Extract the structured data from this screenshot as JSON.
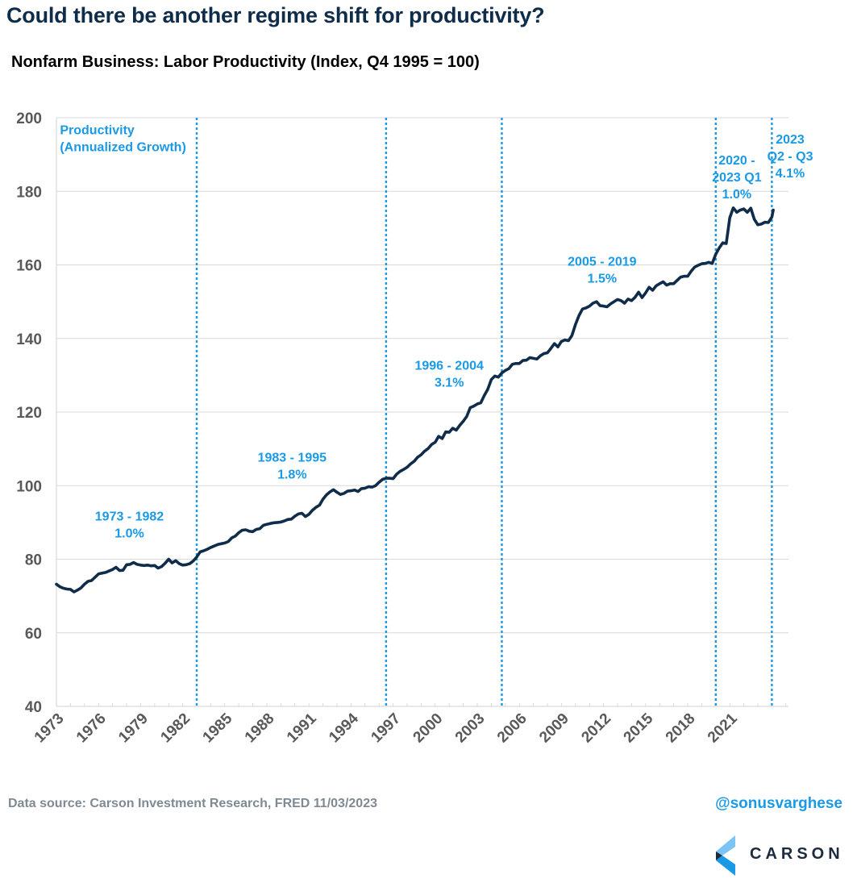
{
  "header": {
    "title": "Could there be another regime shift for productivity?",
    "subtitle": "Nonfarm Business: Labor Productivity (Index, Q4 1995 = 100)"
  },
  "footer": {
    "source": "Data source: Carson Investment Research, FRED   11/03/2023",
    "handle": "@sonusvarghese",
    "logo_text": "CARSON"
  },
  "colors": {
    "line": "#0f2d4a",
    "accent": "#1a9ae6",
    "grid": "#d9d9d9",
    "axis_text": "#595959"
  },
  "chart_data": {
    "type": "line",
    "title": "Nonfarm Business: Labor Productivity (Index, Q4 1995 = 100)",
    "xlabel": "",
    "ylabel": "",
    "ylim": [
      40,
      200
    ],
    "xlim": [
      1973,
      2023.75
    ],
    "yticks": [
      40,
      60,
      80,
      100,
      120,
      140,
      160,
      180,
      200
    ],
    "xtick_labels": [
      "1973",
      "1976",
      "1979",
      "1982",
      "1985",
      "1988",
      "1991",
      "1994",
      "1997",
      "2000",
      "2003",
      "2006",
      "2009",
      "2012",
      "2015",
      "2018",
      "2021"
    ],
    "grid": true,
    "legend": "none",
    "series": [
      {
        "name": "Labor Productivity Index",
        "points": [
          [
            1973.0,
            73.2
          ],
          [
            1973.25,
            72.5
          ],
          [
            1973.5,
            72.1
          ],
          [
            1973.75,
            71.9
          ],
          [
            1974.0,
            71.8
          ],
          [
            1974.25,
            71.1
          ],
          [
            1974.5,
            71.6
          ],
          [
            1974.75,
            72.2
          ],
          [
            1975.0,
            73.2
          ],
          [
            1975.25,
            74.0
          ],
          [
            1975.5,
            74.2
          ],
          [
            1975.75,
            75.1
          ],
          [
            1976.0,
            76.0
          ],
          [
            1976.25,
            76.2
          ],
          [
            1976.5,
            76.4
          ],
          [
            1976.75,
            76.8
          ],
          [
            1977.0,
            77.2
          ],
          [
            1977.25,
            77.8
          ],
          [
            1977.5,
            76.9
          ],
          [
            1977.75,
            77.0
          ],
          [
            1978.0,
            78.5
          ],
          [
            1978.25,
            78.6
          ],
          [
            1978.5,
            79.1
          ],
          [
            1978.75,
            78.6
          ],
          [
            1979.0,
            78.4
          ],
          [
            1979.25,
            78.3
          ],
          [
            1979.5,
            78.4
          ],
          [
            1979.75,
            78.2
          ],
          [
            1980.0,
            78.3
          ],
          [
            1980.25,
            77.6
          ],
          [
            1980.5,
            78.0
          ],
          [
            1980.75,
            78.9
          ],
          [
            1981.0,
            80.0
          ],
          [
            1981.25,
            79.0
          ],
          [
            1981.5,
            79.6
          ],
          [
            1981.75,
            78.8
          ],
          [
            1982.0,
            78.4
          ],
          [
            1982.25,
            78.5
          ],
          [
            1982.5,
            78.8
          ],
          [
            1982.75,
            79.5
          ],
          [
            1983.0,
            80.6
          ],
          [
            1983.25,
            82.0
          ],
          [
            1983.5,
            82.3
          ],
          [
            1983.75,
            82.7
          ],
          [
            1984.0,
            83.2
          ],
          [
            1984.25,
            83.6
          ],
          [
            1984.5,
            84.0
          ],
          [
            1984.75,
            84.2
          ],
          [
            1985.0,
            84.4
          ],
          [
            1985.25,
            84.8
          ],
          [
            1985.5,
            85.8
          ],
          [
            1985.75,
            86.3
          ],
          [
            1986.0,
            87.2
          ],
          [
            1986.25,
            87.9
          ],
          [
            1986.5,
            88.0
          ],
          [
            1986.75,
            87.6
          ],
          [
            1987.0,
            87.5
          ],
          [
            1987.25,
            88.1
          ],
          [
            1987.5,
            88.3
          ],
          [
            1987.75,
            89.2
          ],
          [
            1988.0,
            89.5
          ],
          [
            1988.25,
            89.7
          ],
          [
            1988.5,
            89.9
          ],
          [
            1988.75,
            90.0
          ],
          [
            1989.0,
            90.1
          ],
          [
            1989.25,
            90.4
          ],
          [
            1989.5,
            90.8
          ],
          [
            1989.75,
            90.9
          ],
          [
            1990.0,
            91.7
          ],
          [
            1990.25,
            92.3
          ],
          [
            1990.5,
            92.5
          ],
          [
            1990.75,
            91.6
          ],
          [
            1991.0,
            92.2
          ],
          [
            1991.25,
            93.3
          ],
          [
            1991.5,
            94.1
          ],
          [
            1991.75,
            94.7
          ],
          [
            1992.0,
            96.3
          ],
          [
            1992.25,
            97.5
          ],
          [
            1992.5,
            98.3
          ],
          [
            1992.75,
            98.9
          ],
          [
            1993.0,
            98.2
          ],
          [
            1993.25,
            97.6
          ],
          [
            1993.5,
            97.9
          ],
          [
            1993.75,
            98.5
          ],
          [
            1994.0,
            98.6
          ],
          [
            1994.25,
            98.8
          ],
          [
            1994.5,
            98.4
          ],
          [
            1994.75,
            99.2
          ],
          [
            1995.0,
            99.3
          ],
          [
            1995.25,
            99.7
          ],
          [
            1995.5,
            99.6
          ],
          [
            1995.75,
            100.0
          ],
          [
            1996.0,
            100.9
          ],
          [
            1996.25,
            101.7
          ],
          [
            1996.5,
            102.0
          ],
          [
            1996.75,
            102.0
          ],
          [
            1997.0,
            101.9
          ],
          [
            1997.25,
            103.1
          ],
          [
            1997.5,
            103.9
          ],
          [
            1997.75,
            104.4
          ],
          [
            1998.0,
            105.0
          ],
          [
            1998.25,
            105.9
          ],
          [
            1998.5,
            106.6
          ],
          [
            1998.75,
            107.7
          ],
          [
            1999.0,
            108.4
          ],
          [
            1999.25,
            109.4
          ],
          [
            1999.5,
            110.1
          ],
          [
            1999.75,
            111.2
          ],
          [
            2000.0,
            111.8
          ],
          [
            2000.25,
            113.4
          ],
          [
            2000.5,
            112.8
          ],
          [
            2000.75,
            114.6
          ],
          [
            2001.0,
            114.5
          ],
          [
            2001.25,
            115.6
          ],
          [
            2001.5,
            115.1
          ],
          [
            2001.75,
            116.4
          ],
          [
            2002.0,
            117.5
          ],
          [
            2002.25,
            118.8
          ],
          [
            2002.5,
            121.2
          ],
          [
            2002.75,
            121.6
          ],
          [
            2003.0,
            122.2
          ],
          [
            2003.25,
            122.5
          ],
          [
            2003.5,
            124.5
          ],
          [
            2003.75,
            126.2
          ],
          [
            2004.0,
            128.8
          ],
          [
            2004.25,
            129.8
          ],
          [
            2004.5,
            129.5
          ],
          [
            2004.75,
            130.6
          ],
          [
            2005.0,
            131.3
          ],
          [
            2005.25,
            131.8
          ],
          [
            2005.5,
            133.0
          ],
          [
            2005.75,
            133.2
          ],
          [
            2006.0,
            133.2
          ],
          [
            2006.25,
            134.0
          ],
          [
            2006.5,
            134.1
          ],
          [
            2006.75,
            134.8
          ],
          [
            2007.0,
            134.6
          ],
          [
            2007.25,
            134.4
          ],
          [
            2007.5,
            135.3
          ],
          [
            2007.75,
            135.9
          ],
          [
            2008.0,
            136.1
          ],
          [
            2008.25,
            137.3
          ],
          [
            2008.5,
            138.6
          ],
          [
            2008.75,
            137.7
          ],
          [
            2009.0,
            139.2
          ],
          [
            2009.25,
            139.6
          ],
          [
            2009.5,
            139.4
          ],
          [
            2009.75,
            140.8
          ],
          [
            2010.0,
            143.8
          ],
          [
            2010.25,
            146.2
          ],
          [
            2010.5,
            148.0
          ],
          [
            2010.75,
            148.3
          ],
          [
            2011.0,
            148.8
          ],
          [
            2011.25,
            149.6
          ],
          [
            2011.5,
            150.0
          ],
          [
            2011.75,
            148.9
          ],
          [
            2012.0,
            148.8
          ],
          [
            2012.25,
            148.6
          ],
          [
            2012.5,
            149.4
          ],
          [
            2012.75,
            150.0
          ],
          [
            2013.0,
            150.6
          ],
          [
            2013.25,
            150.3
          ],
          [
            2013.5,
            149.6
          ],
          [
            2013.75,
            150.7
          ],
          [
            2014.0,
            150.3
          ],
          [
            2014.25,
            151.2
          ],
          [
            2014.5,
            152.6
          ],
          [
            2014.75,
            151.1
          ],
          [
            2015.0,
            152.4
          ],
          [
            2015.25,
            153.9
          ],
          [
            2015.5,
            153.1
          ],
          [
            2015.75,
            154.3
          ],
          [
            2016.0,
            154.9
          ],
          [
            2016.25,
            155.4
          ],
          [
            2016.5,
            154.5
          ],
          [
            2016.75,
            154.9
          ],
          [
            2017.0,
            154.9
          ],
          [
            2017.25,
            155.8
          ],
          [
            2017.5,
            156.7
          ],
          [
            2017.75,
            156.9
          ],
          [
            2018.0,
            156.9
          ],
          [
            2018.25,
            158.3
          ],
          [
            2018.5,
            159.4
          ],
          [
            2018.75,
            159.9
          ],
          [
            2019.0,
            160.3
          ],
          [
            2019.25,
            160.4
          ],
          [
            2019.5,
            160.7
          ],
          [
            2019.75,
            160.4
          ],
          [
            2020.0,
            162.9
          ],
          [
            2020.25,
            164.6
          ],
          [
            2020.5,
            166.0
          ],
          [
            2020.75,
            165.8
          ],
          [
            2021.0,
            172.8
          ],
          [
            2021.25,
            175.5
          ],
          [
            2021.5,
            174.3
          ],
          [
            2021.75,
            174.9
          ],
          [
            2022.0,
            175.2
          ],
          [
            2022.25,
            174.3
          ],
          [
            2022.5,
            175.4
          ],
          [
            2022.75,
            172.4
          ],
          [
            2023.0,
            170.9
          ],
          [
            2023.25,
            171.1
          ],
          [
            2023.5,
            171.6
          ],
          [
            2023.75,
            171.5
          ],
          [
            2024.0,
            173.0
          ],
          [
            2024.1,
            174.9
          ]
        ]
      }
    ],
    "regime_dividers": [
      1983.0,
      1996.5,
      2004.75,
      2020.0,
      2024.0
    ],
    "annotations": [
      {
        "lines": [
          "Productivity",
          "(Annualized Growth)"
        ],
        "anchor": "start",
        "x": 1973.25,
        "y": 195.5
      },
      {
        "lines": [
          "1973 - 1982",
          "1.0%"
        ],
        "anchor": "middle",
        "x": 1978.2,
        "y": 90.5
      },
      {
        "lines": [
          "1983 - 1995",
          "1.8%"
        ],
        "anchor": "middle",
        "x": 1989.8,
        "y": 106.5
      },
      {
        "lines": [
          "1996 - 2004",
          "3.1%"
        ],
        "anchor": "middle",
        "x": 2001.0,
        "y": 131.5
      },
      {
        "lines": [
          "2005 - 2019",
          "1.5%"
        ],
        "anchor": "middle",
        "x": 2011.9,
        "y": 159.8
      },
      {
        "lines": [
          "2020 -",
          "2023 Q1",
          "1.0%"
        ],
        "anchor": "middle",
        "x": 2021.5,
        "y": 187.3
      },
      {
        "lines": [
          "2023",
          "Q2 - Q3",
          "4.1%"
        ],
        "anchor": "middle",
        "x": 2025.3,
        "y": 193.0
      }
    ]
  }
}
